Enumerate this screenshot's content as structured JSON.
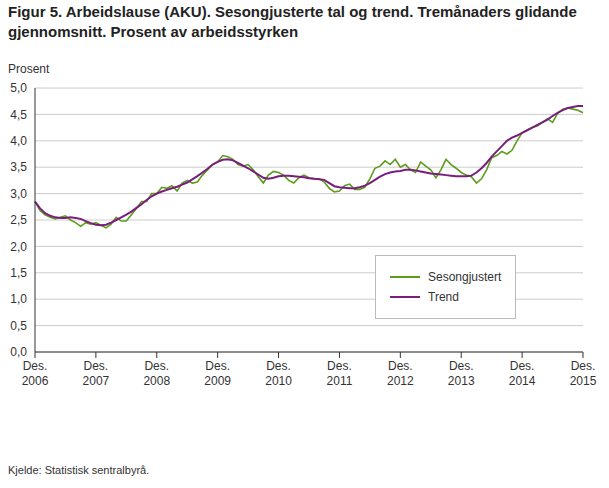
{
  "chart_data": {
    "type": "line",
    "title": "Figur 5. Arbeidslause (AKU). Sesongjusterte tal og trend. Tremånaders glidande gjennomsnitt. Prosent av arbeidsstyrken",
    "y_label": "Prosent",
    "source": "Kjelde: Statistisk sentralbyrå.",
    "categories": [
      "Des. 2006",
      null,
      null,
      null,
      null,
      null,
      null,
      null,
      null,
      null,
      null,
      null,
      "Des. 2007",
      null,
      null,
      null,
      null,
      null,
      null,
      null,
      null,
      null,
      null,
      null,
      "Des. 2008",
      null,
      null,
      null,
      null,
      null,
      null,
      null,
      null,
      null,
      null,
      null,
      "Des. 2009",
      null,
      null,
      null,
      null,
      null,
      null,
      null,
      null,
      null,
      null,
      null,
      "Des. 2010",
      null,
      null,
      null,
      null,
      null,
      null,
      null,
      null,
      null,
      null,
      null,
      "Des. 2011",
      null,
      null,
      null,
      null,
      null,
      null,
      null,
      null,
      null,
      null,
      null,
      "Des. 2012",
      null,
      null,
      null,
      null,
      null,
      null,
      null,
      null,
      null,
      null,
      null,
      "Des. 2013",
      null,
      null,
      null,
      null,
      null,
      null,
      null,
      null,
      null,
      null,
      null,
      "Des. 2014",
      null,
      null,
      null,
      null,
      null,
      null,
      null,
      null,
      null,
      null,
      null,
      "Des. 2015"
    ],
    "series": [
      {
        "name": "Sesongjustert",
        "color": "#5b9c1a",
        "values": [
          2.85,
          2.68,
          2.6,
          2.55,
          2.52,
          2.55,
          2.58,
          2.5,
          2.45,
          2.38,
          2.45,
          2.42,
          2.45,
          2.4,
          2.35,
          2.42,
          2.55,
          2.48,
          2.48,
          2.6,
          2.72,
          2.85,
          2.85,
          3.0,
          3.0,
          3.12,
          3.1,
          3.15,
          3.05,
          3.2,
          3.25,
          3.2,
          3.22,
          3.35,
          3.45,
          3.55,
          3.6,
          3.72,
          3.7,
          3.65,
          3.55,
          3.52,
          3.55,
          3.45,
          3.32,
          3.2,
          3.35,
          3.42,
          3.4,
          3.35,
          3.25,
          3.2,
          3.3,
          3.35,
          3.3,
          3.28,
          3.28,
          3.22,
          3.1,
          3.03,
          3.05,
          3.15,
          3.18,
          3.08,
          3.08,
          3.12,
          3.28,
          3.48,
          3.52,
          3.62,
          3.55,
          3.65,
          3.5,
          3.55,
          3.45,
          3.4,
          3.6,
          3.52,
          3.45,
          3.3,
          3.45,
          3.65,
          3.55,
          3.48,
          3.4,
          3.35,
          3.32,
          3.2,
          3.28,
          3.45,
          3.68,
          3.72,
          3.8,
          3.75,
          3.82,
          4.0,
          4.15,
          4.2,
          4.25,
          4.28,
          4.35,
          4.42,
          4.35,
          4.52,
          4.6,
          4.62,
          4.6,
          4.58,
          4.53
        ]
      },
      {
        "name": "Trend",
        "color": "#7a1e7e",
        "values": [
          2.85,
          2.72,
          2.63,
          2.58,
          2.55,
          2.54,
          2.54,
          2.55,
          2.54,
          2.52,
          2.48,
          2.44,
          2.41,
          2.4,
          2.41,
          2.45,
          2.5,
          2.55,
          2.6,
          2.66,
          2.73,
          2.8,
          2.88,
          2.95,
          3.0,
          3.04,
          3.07,
          3.1,
          3.13,
          3.17,
          3.21,
          3.27,
          3.33,
          3.4,
          3.47,
          3.55,
          3.6,
          3.64,
          3.65,
          3.63,
          3.58,
          3.53,
          3.48,
          3.42,
          3.36,
          3.3,
          3.28,
          3.3,
          3.33,
          3.34,
          3.34,
          3.33,
          3.32,
          3.31,
          3.29,
          3.28,
          3.27,
          3.26,
          3.2,
          3.14,
          3.12,
          3.11,
          3.1,
          3.1,
          3.12,
          3.15,
          3.2,
          3.26,
          3.32,
          3.37,
          3.4,
          3.42,
          3.43,
          3.45,
          3.45,
          3.44,
          3.42,
          3.4,
          3.38,
          3.37,
          3.36,
          3.35,
          3.34,
          3.33,
          3.33,
          3.33,
          3.34,
          3.4,
          3.48,
          3.58,
          3.7,
          3.8,
          3.9,
          4.0,
          4.06,
          4.1,
          4.15,
          4.2,
          4.25,
          4.3,
          4.35,
          4.4,
          4.47,
          4.53,
          4.58,
          4.62,
          4.64,
          4.66,
          4.66
        ]
      }
    ],
    "ylim": [
      0,
      5
    ],
    "yticks": [
      {
        "value": 0,
        "label": "0,0"
      },
      {
        "value": 0.5,
        "label": "0,5"
      },
      {
        "value": 1,
        "label": "1,0"
      },
      {
        "value": 1.5,
        "label": "1,5"
      },
      {
        "value": 2,
        "label": "2,0"
      },
      {
        "value": 2.5,
        "label": "2,5"
      },
      {
        "value": 3,
        "label": "3,0"
      },
      {
        "value": 3.5,
        "label": "3,5"
      },
      {
        "value": 4,
        "label": "4,0"
      },
      {
        "value": 4.5,
        "label": "4,5"
      },
      {
        "value": 5,
        "label": "5,0"
      }
    ],
    "grid": true,
    "legend": "right"
  }
}
